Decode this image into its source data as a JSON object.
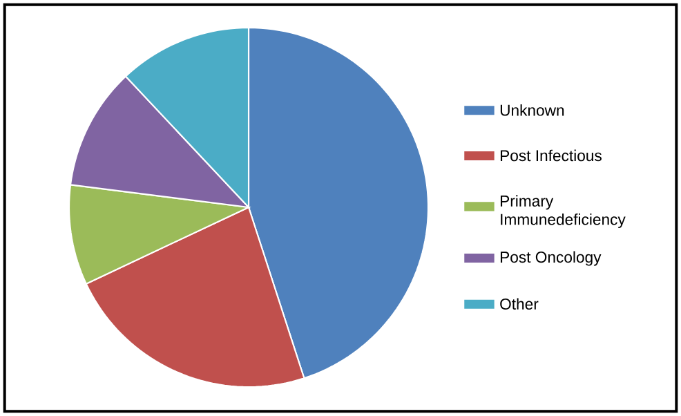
{
  "chart_data": {
    "type": "pie",
    "categories": [
      "Unknown",
      "Post Infectious",
      "Primary Immunedeficiency",
      "Post Oncology",
      "Other"
    ],
    "values": [
      45,
      23,
      9,
      11,
      12
    ],
    "colors": [
      "#4f81bd",
      "#c0504d",
      "#9bbb59",
      "#8064a2",
      "#4bacc6"
    ],
    "legend": "right"
  }
}
